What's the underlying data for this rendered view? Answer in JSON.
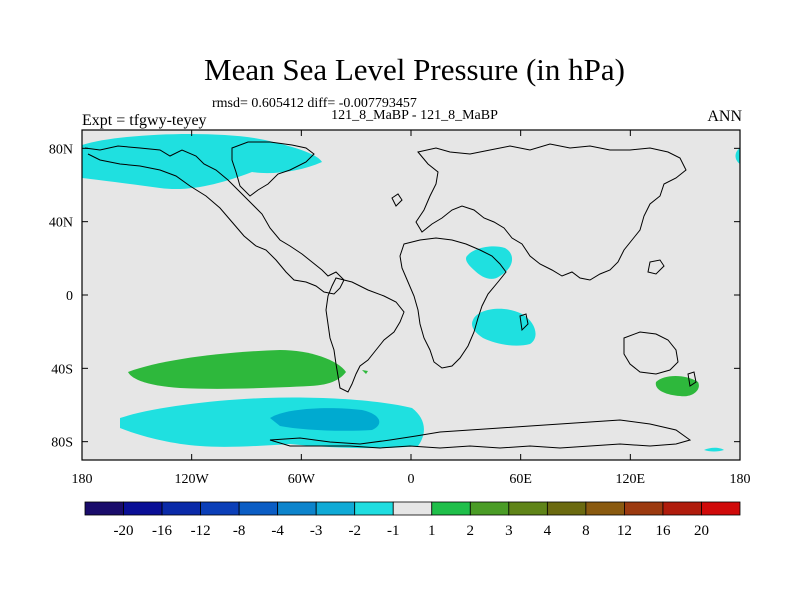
{
  "title": "Mean Sea Level Pressure (in hPa)",
  "stats": "rmsd= 0.605412 diff= -0.007793457",
  "subtitle": "121_8_MaBP - 121_8_MaBP",
  "left_label": "Expt = tfgwy-teyey",
  "right_label": "ANN",
  "colors": {
    "ocean_land_background": "#e6e6e6",
    "coastline": "#000000",
    "minus_one": "#1fe0e0",
    "minus_two": "#00aad0",
    "plus_one": "#2eb83c"
  },
  "map": {
    "x_ticks": [
      {
        "value": -180,
        "label": "180"
      },
      {
        "value": -120,
        "label": "120W"
      },
      {
        "value": -60,
        "label": "60W"
      },
      {
        "value": 0,
        "label": "0"
      },
      {
        "value": 60,
        "label": "60E"
      },
      {
        "value": 120,
        "label": "120E"
      },
      {
        "value": 180,
        "label": "180"
      }
    ],
    "y_ticks": [
      {
        "value": 80,
        "label": "80N"
      },
      {
        "value": 40,
        "label": "40N"
      },
      {
        "value": 0,
        "label": "0"
      },
      {
        "value": -40,
        "label": "40S"
      },
      {
        "value": -80,
        "label": "80S"
      }
    ],
    "lon_range": [
      -180,
      180
    ],
    "lat_range": [
      -90,
      90
    ]
  },
  "colorbar": {
    "colors": [
      "#1a0c6b",
      "#0a0f96",
      "#0a2aa8",
      "#0b3fb8",
      "#0b5dc4",
      "#0d84cc",
      "#10aad6",
      "#1fdde0",
      "#e6e6e6",
      "#1fbf4a",
      "#4a9c26",
      "#5f8418",
      "#6b6a10",
      "#8a5a10",
      "#9c3a10",
      "#b01c0c",
      "#d00a0a"
    ],
    "labels": [
      "-20",
      "-16",
      "-12",
      "-8",
      "-4",
      "-3",
      "-2",
      "-1",
      "1",
      "2",
      "3",
      "4",
      "8",
      "12",
      "16",
      "20"
    ]
  }
}
